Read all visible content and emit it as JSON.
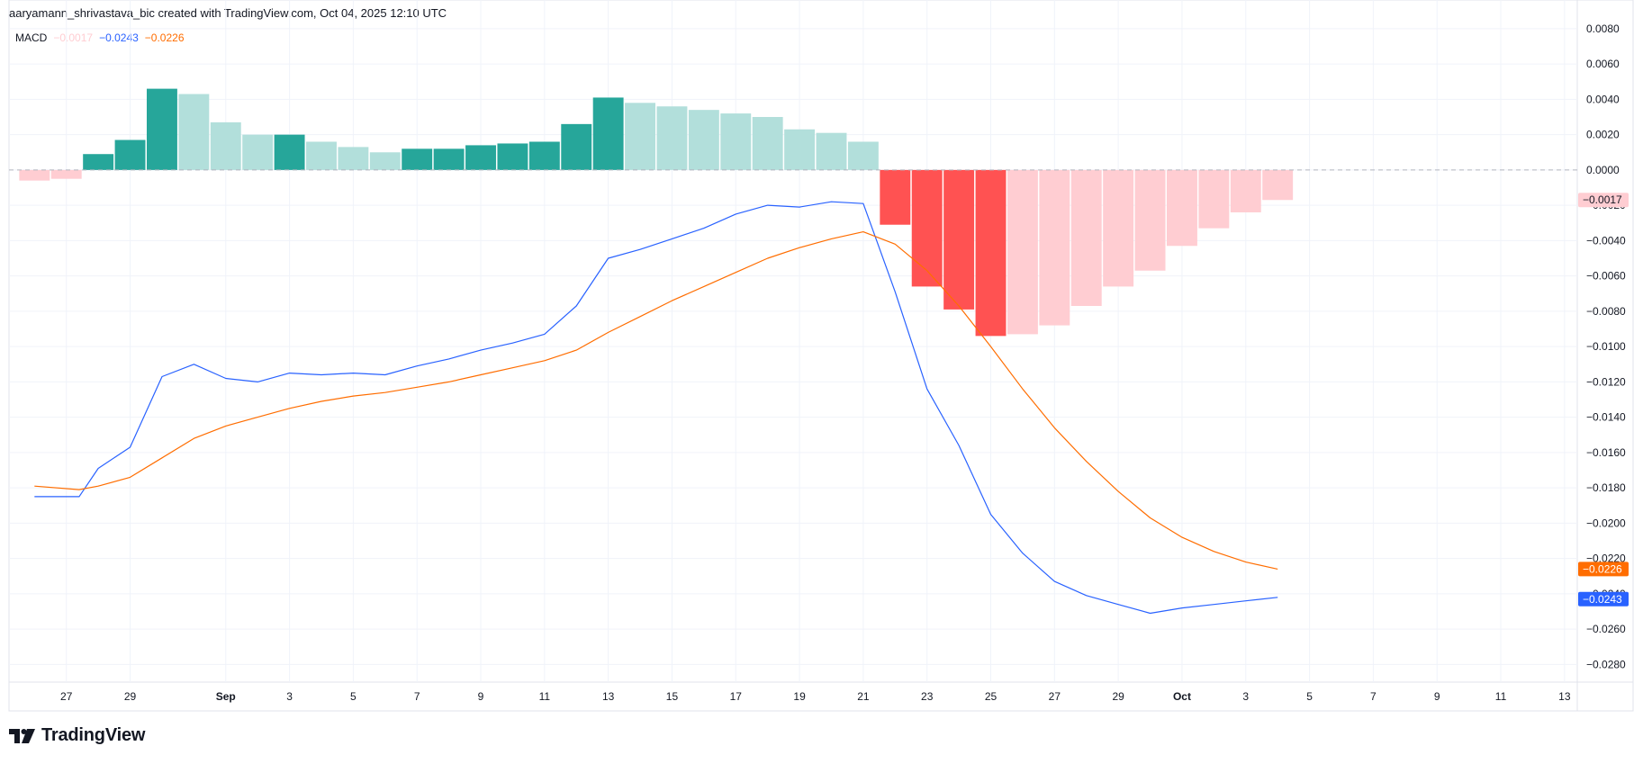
{
  "header": {
    "caption": "aaryamann_shrivastava_bic created with TradingView.com, Oct 04, 2025 12:10 UTC"
  },
  "legend": {
    "indicator": "MACD",
    "histogram_value": "−0.0017",
    "macd_value": "−0.0243",
    "signal_value": "−0.0226"
  },
  "brand": {
    "name": "TradingView"
  },
  "colors": {
    "macd_line": "#2962ff",
    "signal_line": "#ff6d00",
    "hist_pos_strong": "#26a69a",
    "hist_pos_weak": "#b2dfdb",
    "hist_neg_strong": "#ff5252",
    "hist_neg_weak": "#ffcdd2",
    "grid": "#f0f3fa",
    "zero_line": "#b2b5be"
  },
  "chart_data": {
    "type": "bar+line",
    "title": "",
    "ylim": [
      -0.029,
      0.0083
    ],
    "y_ticks": [
      "0.0080",
      "0.0060",
      "0.0040",
      "0.0020",
      "0.0000",
      "−0.0020",
      "−0.0040",
      "−0.0060",
      "−0.0080",
      "−0.0100",
      "−0.0120",
      "−0.0140",
      "−0.0160",
      "−0.0180",
      "−0.0200",
      "−0.0220",
      "−0.0240",
      "−0.0260",
      "−0.0280"
    ],
    "x_ticks": [
      {
        "label": "27",
        "day": -4,
        "month": false
      },
      {
        "label": "29",
        "day": -2,
        "month": false
      },
      {
        "label": "Sep",
        "day": 1,
        "month": true
      },
      {
        "label": "3",
        "day": 3,
        "month": false
      },
      {
        "label": "5",
        "day": 5,
        "month": false
      },
      {
        "label": "7",
        "day": 7,
        "month": false
      },
      {
        "label": "9",
        "day": 9,
        "month": false
      },
      {
        "label": "11",
        "day": 11,
        "month": false
      },
      {
        "label": "13",
        "day": 13,
        "month": false
      },
      {
        "label": "15",
        "day": 15,
        "month": false
      },
      {
        "label": "17",
        "day": 17,
        "month": false
      },
      {
        "label": "19",
        "day": 19,
        "month": false
      },
      {
        "label": "21",
        "day": 21,
        "month": false
      },
      {
        "label": "23",
        "day": 23,
        "month": false
      },
      {
        "label": "25",
        "day": 25,
        "month": false
      },
      {
        "label": "27",
        "day": 27,
        "month": false
      },
      {
        "label": "29",
        "day": 29,
        "month": false
      },
      {
        "label": "Oct",
        "day": 31,
        "month": true
      },
      {
        "label": "3",
        "day": 33,
        "month": false
      },
      {
        "label": "5",
        "day": 35,
        "month": false
      },
      {
        "label": "7",
        "day": 37,
        "month": false
      },
      {
        "label": "9",
        "day": 39,
        "month": false
      },
      {
        "label": "11",
        "day": 41,
        "month": false
      },
      {
        "label": "13",
        "day": 43,
        "month": false
      }
    ],
    "x_range_days": [
      -5.8,
      43.4
    ],
    "histogram": {
      "days": [
        -5,
        -4,
        -3,
        -2,
        -1,
        0,
        1,
        2,
        3,
        4,
        5,
        6,
        7,
        8,
        9,
        10,
        11,
        12,
        13,
        14,
        15,
        16,
        17,
        18,
        19,
        20,
        21,
        22,
        23,
        24,
        25,
        26,
        27,
        28,
        29,
        30,
        31,
        32,
        33,
        34
      ],
      "values": [
        -0.0006,
        -0.0005,
        0.0009,
        0.0017,
        0.0046,
        0.0043,
        0.0027,
        0.002,
        0.002,
        0.0016,
        0.0013,
        0.001,
        0.0012,
        0.0012,
        0.0014,
        0.0015,
        0.0016,
        0.0026,
        0.0041,
        0.0038,
        0.0036,
        0.0034,
        0.0032,
        0.003,
        0.0023,
        0.0021,
        0.0016,
        -0.0031,
        -0.0066,
        -0.0079,
        -0.0094,
        -0.0093,
        -0.0088,
        -0.0077,
        -0.0066,
        -0.0057,
        -0.0043,
        -0.0033,
        -0.0024,
        -0.0017
      ],
      "strength": [
        "weak",
        "weak",
        "strong",
        "strong",
        "strong",
        "weak",
        "weak",
        "weak",
        "strong",
        "weak",
        "weak",
        "weak",
        "strong",
        "strong",
        "strong",
        "strong",
        "strong",
        "strong",
        "strong",
        "weak",
        "weak",
        "weak",
        "weak",
        "weak",
        "weak",
        "weak",
        "weak",
        "strong",
        "strong",
        "strong",
        "strong",
        "weak",
        "weak",
        "weak",
        "weak",
        "weak",
        "weak",
        "weak",
        "weak",
        "weak"
      ]
    },
    "series": [
      {
        "name": "MACD",
        "days": [
          -5,
          -3.6,
          -3,
          -2,
          -1,
          0,
          1,
          2,
          3,
          4,
          5,
          6,
          7,
          8,
          9,
          10,
          11,
          12,
          13,
          14,
          15,
          16,
          17,
          18,
          19,
          20,
          21,
          22,
          23,
          24,
          25,
          26,
          27,
          28,
          29,
          30,
          31,
          32,
          33,
          34
        ],
        "values": [
          -0.0185,
          -0.0185,
          -0.0169,
          -0.0157,
          -0.0117,
          -0.011,
          -0.0118,
          -0.012,
          -0.0115,
          -0.0116,
          -0.0115,
          -0.0116,
          -0.0111,
          -0.0107,
          -0.0102,
          -0.0098,
          -0.0093,
          -0.0077,
          -0.005,
          -0.0045,
          -0.0039,
          -0.0033,
          -0.0025,
          -0.002,
          -0.0021,
          -0.0018,
          -0.0019,
          -0.0069,
          -0.0124,
          -0.0156,
          -0.0195,
          -0.0217,
          -0.0233,
          -0.0241,
          -0.0246,
          -0.0251,
          -0.0248,
          -0.0246,
          -0.0244,
          -0.0242
        ]
      },
      {
        "name": "Signal",
        "days": [
          -5,
          -3.6,
          -3,
          -2,
          -1,
          0,
          1,
          2,
          3,
          4,
          5,
          6,
          7,
          8,
          9,
          10,
          11,
          12,
          13,
          14,
          15,
          16,
          17,
          18,
          19,
          20,
          21,
          22,
          23,
          24,
          25,
          26,
          27,
          28,
          29,
          30,
          31,
          32,
          33,
          34
        ],
        "values": [
          -0.0179,
          -0.0181,
          -0.0179,
          -0.0174,
          -0.0163,
          -0.0152,
          -0.0145,
          -0.014,
          -0.0135,
          -0.0131,
          -0.0128,
          -0.0126,
          -0.0123,
          -0.012,
          -0.0116,
          -0.0112,
          -0.0108,
          -0.0102,
          -0.0092,
          -0.0083,
          -0.0074,
          -0.0066,
          -0.0058,
          -0.005,
          -0.0044,
          -0.0039,
          -0.0035,
          -0.0042,
          -0.0057,
          -0.0077,
          -0.01,
          -0.0124,
          -0.0146,
          -0.0165,
          -0.0182,
          -0.0197,
          -0.0208,
          -0.0216,
          -0.0222,
          -0.0226
        ]
      }
    ],
    "price_badges": [
      {
        "value": -0.0017,
        "label": "−0.0017",
        "color": "#ffcdd2"
      },
      {
        "value": -0.0226,
        "label": "−0.0226",
        "color": "#ff6d00"
      },
      {
        "value": -0.0243,
        "label": "−0.0243",
        "color": "#2962ff"
      }
    ]
  }
}
